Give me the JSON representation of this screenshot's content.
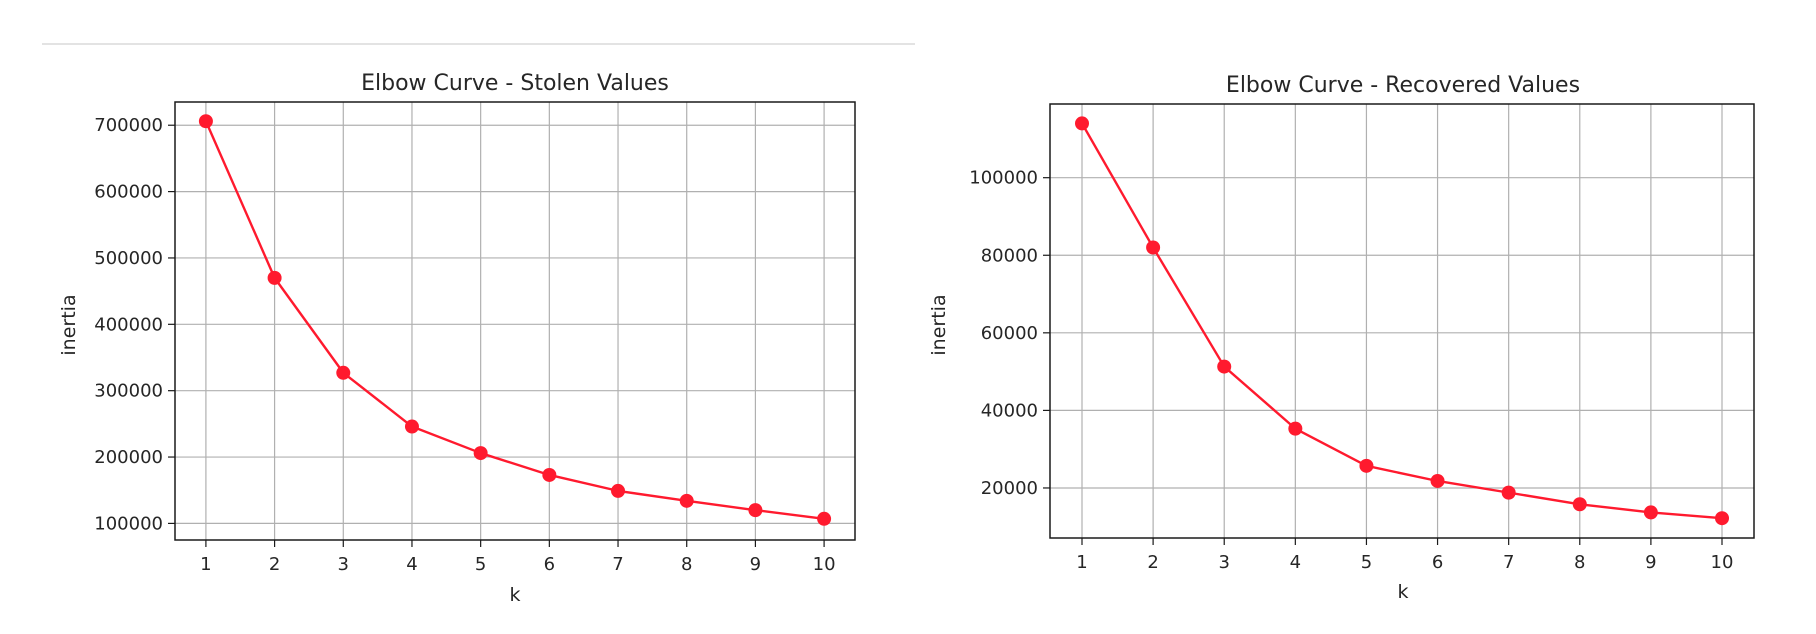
{
  "chart_data": [
    {
      "type": "line",
      "title": "Elbow Curve - Stolen Values",
      "xlabel": "k",
      "ylabel": "inertia",
      "x": [
        1,
        2,
        3,
        4,
        5,
        6,
        7,
        8,
        9,
        10
      ],
      "series": [
        {
          "values": [
            706000,
            470000,
            327000,
            246000,
            206000,
            173000,
            149000,
            134000,
            120000,
            107000
          ]
        }
      ],
      "xlim": [
        0.55,
        10.45
      ],
      "ylim": [
        75000,
        735000
      ],
      "xticks": [
        "1",
        "2",
        "3",
        "4",
        "5",
        "6",
        "7",
        "8",
        "9",
        "10"
      ],
      "yticks": [
        "100000",
        "200000",
        "300000",
        "400000",
        "500000",
        "600000",
        "700000"
      ],
      "grid": true,
      "line_color": "#ff1a2e",
      "marker": "circle"
    },
    {
      "type": "line",
      "title": "Elbow Curve - Recovered Values",
      "xlabel": "k",
      "ylabel": "inertia",
      "x": [
        1,
        2,
        3,
        4,
        5,
        6,
        7,
        8,
        9,
        10
      ],
      "series": [
        {
          "values": [
            114000,
            82000,
            51300,
            35300,
            25700,
            21800,
            18800,
            15800,
            13700,
            12200
          ]
        }
      ],
      "xlim": [
        0.55,
        10.45
      ],
      "ylim": [
        7100,
        119000
      ],
      "xticks": [
        "1",
        "2",
        "3",
        "4",
        "5",
        "6",
        "7",
        "8",
        "9",
        "10"
      ],
      "yticks": [
        "20000",
        "40000",
        "60000",
        "80000",
        "100000"
      ],
      "grid": true,
      "line_color": "#ff1a2e",
      "marker": "circle"
    }
  ]
}
